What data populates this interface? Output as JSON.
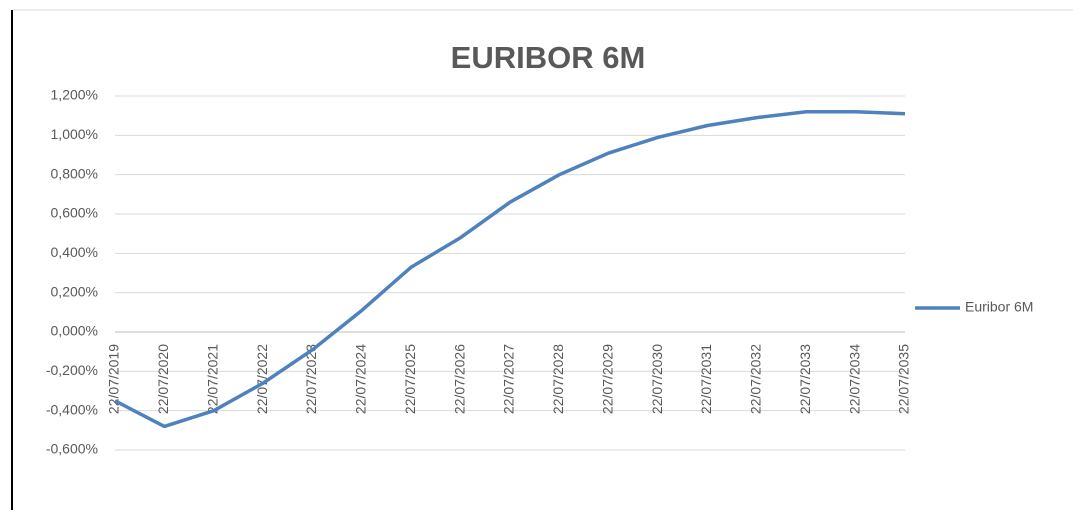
{
  "chart_data": {
    "type": "line",
    "title": "EURIBOR 6M",
    "categories": [
      "22/07/2019",
      "22/07/2020",
      "22/07/2021",
      "22/07/2022",
      "22/07/2023",
      "22/07/2024",
      "22/07/2025",
      "22/07/2026",
      "22/07/2027",
      "22/07/2028",
      "22/07/2029",
      "22/07/2030",
      "22/07/2031",
      "22/07/2032",
      "22/07/2033",
      "22/07/2034",
      "22/07/2035"
    ],
    "series": [
      {
        "name": "Euribor 6M",
        "color": "#4f81bd",
        "values": [
          -0.35,
          -0.48,
          -0.4,
          -0.26,
          -0.09,
          0.11,
          0.33,
          0.48,
          0.66,
          0.8,
          0.91,
          0.99,
          1.05,
          1.09,
          1.12,
          1.12,
          1.11
        ]
      }
    ],
    "ylim": [
      -0.6,
      1.2
    ],
    "yticks": [
      {
        "value": -0.6,
        "label": "-0,600%"
      },
      {
        "value": -0.4,
        "label": "-0,400%"
      },
      {
        "value": -0.2,
        "label": "-0,200%"
      },
      {
        "value": 0,
        "label": "0,000%"
      },
      {
        "value": 0.2,
        "label": "0,200%"
      },
      {
        "value": 0.4,
        "label": "0,400%"
      },
      {
        "value": 0.6,
        "label": "0,600%"
      },
      {
        "value": 0.8,
        "label": "0,800%"
      },
      {
        "value": 1.0,
        "label": "1,000%"
      },
      {
        "value": 1.2,
        "label": "1,200%"
      }
    ],
    "grid": true,
    "legend": "right"
  }
}
